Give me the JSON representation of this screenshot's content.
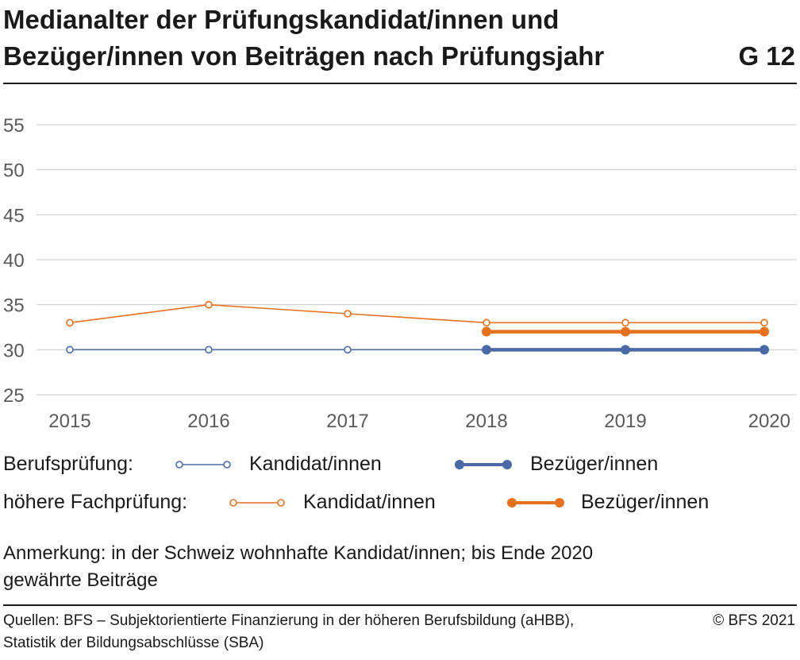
{
  "header": {
    "title_line1": "Medianalter der Prüfungskandidat/innen und",
    "title_line2": "Bezüger/innen von Beiträgen nach Prüfungsjahr",
    "code": "G 12"
  },
  "chart_data": {
    "type": "line",
    "x": [
      "2015",
      "2016",
      "2017",
      "2018",
      "2019",
      "2020"
    ],
    "ylim": [
      25,
      55
    ],
    "yticks": [
      25,
      30,
      35,
      40,
      45,
      50,
      55
    ],
    "grid": true,
    "series": [
      {
        "key": "bp_kand",
        "group": "Berufsprüfung",
        "name": "Kandidat/innen",
        "color": "#4a6aa5",
        "style": "thin-hollow",
        "x": [
          "2015",
          "2016",
          "2017",
          "2018",
          "2019",
          "2020"
        ],
        "values": [
          30,
          30,
          30,
          30,
          30,
          30
        ]
      },
      {
        "key": "hf_kand",
        "group": "höhere Fachprüfung",
        "name": "Kandidat/innen",
        "color": "#e8711e",
        "style": "thin-hollow",
        "x": [
          "2015",
          "2016",
          "2017",
          "2018",
          "2019",
          "2020"
        ],
        "values": [
          33,
          35,
          34,
          33,
          33,
          33
        ]
      },
      {
        "key": "bp_bez",
        "group": "Berufsprüfung",
        "name": "Bezüger/innen",
        "color": "#4a6aa5",
        "style": "thick-filled",
        "x": [
          "2018",
          "2019",
          "2020"
        ],
        "values": [
          30,
          30,
          30
        ]
      },
      {
        "key": "hf_bez",
        "group": "höhere Fachprüfung",
        "name": "Bezüger/innen",
        "color": "#e8711e",
        "style": "thick-filled",
        "x": [
          "2018",
          "2019",
          "2020"
        ],
        "values": [
          32,
          32,
          32
        ]
      }
    ]
  },
  "legend": {
    "row1": {
      "group": "Berufsprüfung:",
      "a": "Kandidat/innen",
      "b": "Bezüger/innen"
    },
    "row2": {
      "group": "höhere Fachprüfung:",
      "a": "Kandidat/innen",
      "b": "Bezüger/innen"
    }
  },
  "note": {
    "line1": "Anmerkung: in der Schweiz wohnhafte Kandidat/innen; bis Ende 2020",
    "line2": "gewährte Beiträge"
  },
  "footer": {
    "line1": "Quellen: BFS – Subjektorientierte Finanzierung in der höheren Berufsbildung (aHBB),",
    "line2": "Statistik der Bildungsabschlüsse (SBA)",
    "copyright": "© BFS 2021"
  }
}
